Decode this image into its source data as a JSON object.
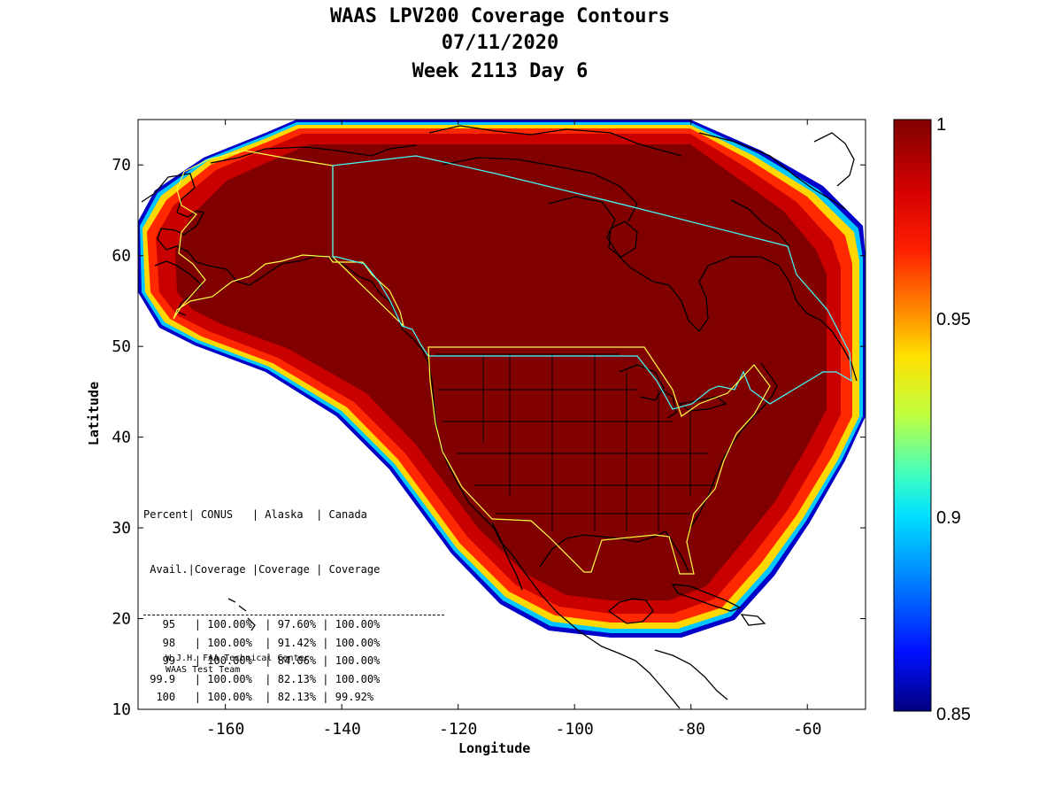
{
  "title": {
    "line1": "WAAS LPV200 Coverage Contours",
    "line2": "07/11/2020",
    "line3": "Week 2113 Day 6"
  },
  "map": {
    "xlabel": "Longitude",
    "ylabel": "Latitude",
    "x_ticks": [
      "-160",
      "-140",
      "-120",
      "-100",
      "-80",
      "-60"
    ],
    "y_ticks": [
      "10",
      "20",
      "30",
      "40",
      "50",
      "60",
      "70"
    ],
    "xlim": [
      -175,
      -50
    ],
    "ylim": [
      10,
      75
    ],
    "land_color": "#800000",
    "coastline_color": "#000000",
    "service_area_conus_alaska_color": "#ffff00",
    "service_area_canada_color": "#00ffff"
  },
  "colorbar": {
    "labels": [
      "1",
      "0.95",
      "0.9",
      "0.85"
    ],
    "range": [
      0.85,
      1.0
    ],
    "colors": [
      "#800000",
      "#ff0000",
      "#ff8000",
      "#ffff00",
      "#00ffff",
      "#0080ff",
      "#0000ff",
      "#000080"
    ]
  },
  "stats_table": {
    "header1": [
      "Percent",
      "CONUS",
      "Alaska",
      "Canada"
    ],
    "header2": [
      "Avail.",
      "Coverage",
      "Coverage",
      "Coverage"
    ],
    "rows": [
      {
        "pct": "95",
        "conus": "100.00%",
        "alaska": "97.60%",
        "canada": "100.00%"
      },
      {
        "pct": "98",
        "conus": "100.00%",
        "alaska": "91.42%",
        "canada": "100.00%"
      },
      {
        "pct": "99",
        "conus": "100.00%",
        "alaska": "84.06%",
        "canada": "100.00%"
      },
      {
        "pct": "99.9",
        "conus": "100.00%",
        "alaska": "82.13%",
        "canada": "100.00%"
      },
      {
        "pct": "100",
        "conus": "100.00%",
        "alaska": "82.13%",
        "canada": "99.92%"
      }
    ]
  },
  "credit": {
    "line1": "W.J.H. FAA Technical Center",
    "line2": "WAAS Test Team"
  }
}
